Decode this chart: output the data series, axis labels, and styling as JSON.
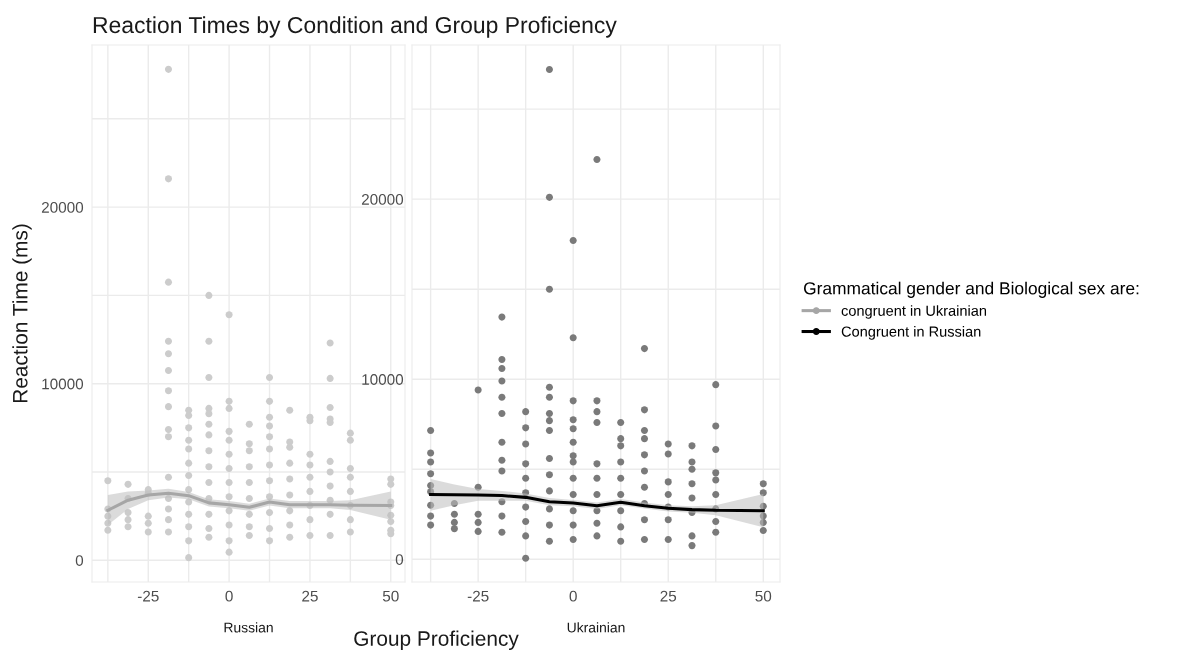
{
  "chart_data": [
    {
      "type": "scatter",
      "title": "Reaction Times by Condition and Group Proficiency",
      "subtitle": "Russian",
      "xlabel": "Group Proficiency",
      "ylabel": "Reaction Time (ms)",
      "xlim": [
        -42.4,
        54.4
      ],
      "ylim": [
        -1230,
        29180
      ],
      "xticks": [
        {
          "value": -37.5,
          "label": null
        },
        -25,
        {
          "value": -12.5,
          "label": null
        },
        0,
        {
          "value": 12.5,
          "label": null
        },
        25,
        {
          "value": 37.5,
          "label": null
        },
        50
      ],
      "yticks": [
        0,
        {
          "value": 5000,
          "label": null
        },
        10000,
        {
          "value": 15000,
          "label": null
        },
        20000,
        {
          "value": 25000,
          "label": null
        }
      ],
      "grid": true,
      "series": [
        {
          "marker": "circle",
          "color": "#cccccc",
          "x": [
            -37.5,
            -37.5,
            -37.5,
            -37.5,
            -37.5,
            -31.25,
            -31.25,
            -31.25,
            -31.25,
            -31.25,
            -25,
            -25,
            -25,
            -25,
            -25,
            -18.75,
            -18.75,
            -18.75,
            -18.75,
            -18.75,
            -18.75,
            -18.75,
            -18.75,
            -18.75,
            -18.75,
            -18.75,
            -18.75,
            -18.75,
            -18.75,
            -18.75,
            -12.5,
            -12.5,
            -12.5,
            -12.5,
            -12.5,
            -12.5,
            -12.5,
            -12.5,
            -12.5,
            -12.5,
            -12.5,
            -12.5,
            -12.5,
            -6.25,
            -6.25,
            -6.25,
            -6.25,
            -6.25,
            -6.25,
            -6.25,
            -6.25,
            -6.25,
            -6.25,
            -6.25,
            -6.25,
            -6.25,
            -6.25,
            0,
            0,
            0,
            0,
            0,
            0,
            0,
            0,
            0,
            0,
            0,
            0,
            0,
            6.25,
            6.25,
            6.25,
            6.25,
            6.25,
            6.25,
            6.25,
            6.25,
            6.25,
            12.5,
            12.5,
            12.5,
            12.5,
            12.5,
            12.5,
            12.5,
            12.5,
            12.5,
            12.5,
            12.5,
            12.5,
            18.75,
            18.75,
            18.75,
            18.75,
            18.75,
            18.75,
            18.75,
            18.75,
            18.75,
            25,
            25,
            25,
            25,
            25,
            25,
            25,
            25,
            25,
            31.25,
            31.25,
            31.25,
            31.25,
            31.25,
            31.25,
            31.25,
            31.25,
            31.25,
            31.25,
            31.25,
            37.5,
            37.5,
            37.5,
            37.5,
            37.5,
            37.5,
            37.5,
            37.5,
            50,
            50,
            50,
            50,
            50,
            50,
            50,
            50
          ],
          "values": [
            4500,
            2900,
            2500,
            2100,
            1700,
            4300,
            3500,
            2700,
            2300,
            1900,
            4000,
            3800,
            2500,
            2100,
            1600,
            27800,
            21600,
            15750,
            12400,
            11700,
            10750,
            9600,
            8700,
            7400,
            7000,
            4700,
            3500,
            2900,
            2300,
            1600,
            8500,
            8200,
            7500,
            6800,
            6300,
            5500,
            4800,
            4000,
            3300,
            2600,
            1900,
            1100,
            150,
            15000,
            12400,
            10350,
            8600,
            8300,
            7700,
            7100,
            6200,
            5300,
            4400,
            3500,
            2600,
            1800,
            1300,
            13900,
            9000,
            8600,
            7300,
            6800,
            6000,
            5200,
            4400,
            3600,
            2800,
            2000,
            1100,
            460,
            7700,
            6600,
            6200,
            5300,
            4400,
            3500,
            2600,
            1900,
            1400,
            10350,
            9000,
            8100,
            7600,
            7000,
            6300,
            5400,
            4500,
            3600,
            2700,
            1800,
            1100,
            8500,
            6700,
            6400,
            5500,
            4600,
            3700,
            2800,
            2000,
            1300,
            8100,
            7900,
            6000,
            5400,
            4700,
            3900,
            3100,
            2300,
            1400,
            12300,
            10300,
            8650,
            8000,
            7800,
            5600,
            5000,
            4200,
            3400,
            2600,
            1400,
            7200,
            6800,
            5200,
            4700,
            3900,
            3100,
            2300,
            1600,
            4600,
            4300,
            3300,
            3100,
            2550,
            2200,
            1700,
            1500
          ]
        },
        {
          "type": "line",
          "name": "congruent in Ukrainian",
          "color": "#a6a6a6",
          "x": [
            -37.5,
            -31.25,
            -25,
            -18.75,
            -12.5,
            -6.25,
            0,
            6.25,
            12.5,
            18.75,
            25,
            31.25,
            37.5,
            50
          ],
          "values": [
            2830,
            3400,
            3700,
            3800,
            3660,
            3250,
            3150,
            3000,
            3300,
            3150,
            3150,
            3150,
            3120,
            3100
          ],
          "lower": [
            2000,
            2900,
            3400,
            3550,
            3450,
            3050,
            2950,
            2800,
            3100,
            2950,
            2950,
            2950,
            2850,
            2300
          ],
          "upper": [
            3700,
            3900,
            3950,
            4050,
            3870,
            3450,
            3350,
            3200,
            3500,
            3350,
            3350,
            3350,
            3400,
            3900
          ]
        }
      ]
    },
    {
      "type": "scatter",
      "subtitle": "Ukrainian",
      "legend_title": "Grammatical gender and Biological sex are:",
      "legend": "right",
      "xlim": [
        -42.4,
        54.4
      ],
      "ylim": [
        -1260,
        28560
      ],
      "xticks": [
        {
          "value": -37.5,
          "label": null
        },
        -25,
        {
          "value": -12.5,
          "label": null
        },
        0,
        {
          "value": 12.5,
          "label": null
        },
        25,
        {
          "value": 37.5,
          "label": null
        },
        50
      ],
      "yticks": [
        0,
        {
          "value": 5000,
          "label": null
        },
        10000,
        {
          "value": 15000,
          "label": null
        },
        20000,
        {
          "value": 25000,
          "label": null
        }
      ],
      "grid": true,
      "series": [
        {
          "marker": "circle",
          "color": "#7a7a7a",
          "x": [
            -37.5,
            -37.5,
            -37.5,
            -37.5,
            -37.5,
            -37.5,
            -37.5,
            -37.5,
            -37.5,
            -31.25,
            -31.25,
            -31.25,
            -31.25,
            -25,
            -25,
            -25,
            -25,
            -25,
            -18.75,
            -18.75,
            -18.75,
            -18.75,
            -18.75,
            -18.75,
            -18.75,
            -18.75,
            -18.75,
            -18.75,
            -18.75,
            -18.75,
            -12.5,
            -12.5,
            -12.5,
            -12.5,
            -12.5,
            -12.5,
            -12.5,
            -12.5,
            -12.5,
            -12.5,
            -6.25,
            -6.25,
            -6.25,
            -6.25,
            -6.25,
            -6.25,
            -6.25,
            -6.25,
            -6.25,
            -6.25,
            -6.25,
            -6.25,
            -6.25,
            -6.25,
            0,
            0,
            0,
            0,
            0,
            0,
            0,
            0,
            0,
            0,
            0,
            0,
            0,
            6.25,
            6.25,
            6.25,
            6.25,
            6.25,
            6.25,
            6.25,
            6.25,
            6.25,
            6.25,
            12.5,
            12.5,
            12.5,
            12.5,
            12.5,
            12.5,
            12.5,
            12.5,
            12.5,
            18.75,
            18.75,
            18.75,
            18.75,
            18.75,
            18.75,
            18.75,
            18.75,
            18.75,
            18.75,
            25,
            25,
            25,
            25,
            25,
            25,
            25,
            31.25,
            31.25,
            31.25,
            31.25,
            31.25,
            31.25,
            31.25,
            31.25,
            37.5,
            37.5,
            37.5,
            37.5,
            37.5,
            37.5,
            37.5,
            37.5,
            37.5,
            50,
            50,
            50,
            50,
            50,
            50
          ],
          "values": [
            7150,
            5900,
            5400,
            4750,
            4100,
            3750,
            3000,
            2400,
            1900,
            3100,
            2500,
            2050,
            1700,
            9400,
            4000,
            2500,
            2050,
            1550,
            13450,
            11100,
            10600,
            9900,
            9000,
            8100,
            6500,
            5500,
            4900,
            3200,
            2400,
            1500,
            8200,
            7300,
            6400,
            5300,
            4500,
            3700,
            2900,
            2100,
            1300,
            60,
            27200,
            20100,
            15000,
            9550,
            9000,
            8100,
            7700,
            7150,
            5600,
            4700,
            3800,
            2800,
            1900,
            1000,
            17700,
            12300,
            8800,
            7750,
            7250,
            6500,
            5750,
            5400,
            4500,
            3600,
            2700,
            1900,
            1100,
            22200,
            8800,
            8200,
            7600,
            5300,
            4500,
            3600,
            2700,
            2000,
            1300,
            7600,
            6700,
            6300,
            5400,
            4500,
            3600,
            2700,
            1800,
            1000,
            11700,
            8300,
            7150,
            6700,
            5800,
            4900,
            4000,
            3100,
            2200,
            1100,
            6400,
            5850,
            4300,
            3600,
            2900,
            2200,
            1100,
            6300,
            5400,
            5000,
            4200,
            3400,
            2600,
            1300,
            760,
            9700,
            7400,
            6100,
            4800,
            4400,
            3600,
            2800,
            2100,
            1500,
            4200,
            3700,
            2950,
            2400,
            2050,
            1600
          ]
        },
        {
          "type": "line",
          "name": "Congruent in Russian",
          "color": "#000000",
          "x": [
            -37.5,
            -31.25,
            -25,
            -18.75,
            -12.5,
            -6.25,
            0,
            6.25,
            12.5,
            18.75,
            25,
            31.25,
            37.5,
            50
          ],
          "values": [
            3600,
            3590,
            3570,
            3540,
            3440,
            3200,
            3130,
            2980,
            3170,
            2980,
            2830,
            2760,
            2720,
            2700
          ],
          "lower": [
            2700,
            3000,
            3250,
            3250,
            3250,
            3000,
            2950,
            2800,
            3000,
            2820,
            2650,
            2580,
            2450,
            1780
          ],
          "upper": [
            4460,
            4150,
            3900,
            3800,
            3650,
            3400,
            3300,
            3150,
            3350,
            3150,
            3000,
            2950,
            3000,
            3630
          ]
        }
      ]
    }
  ]
}
